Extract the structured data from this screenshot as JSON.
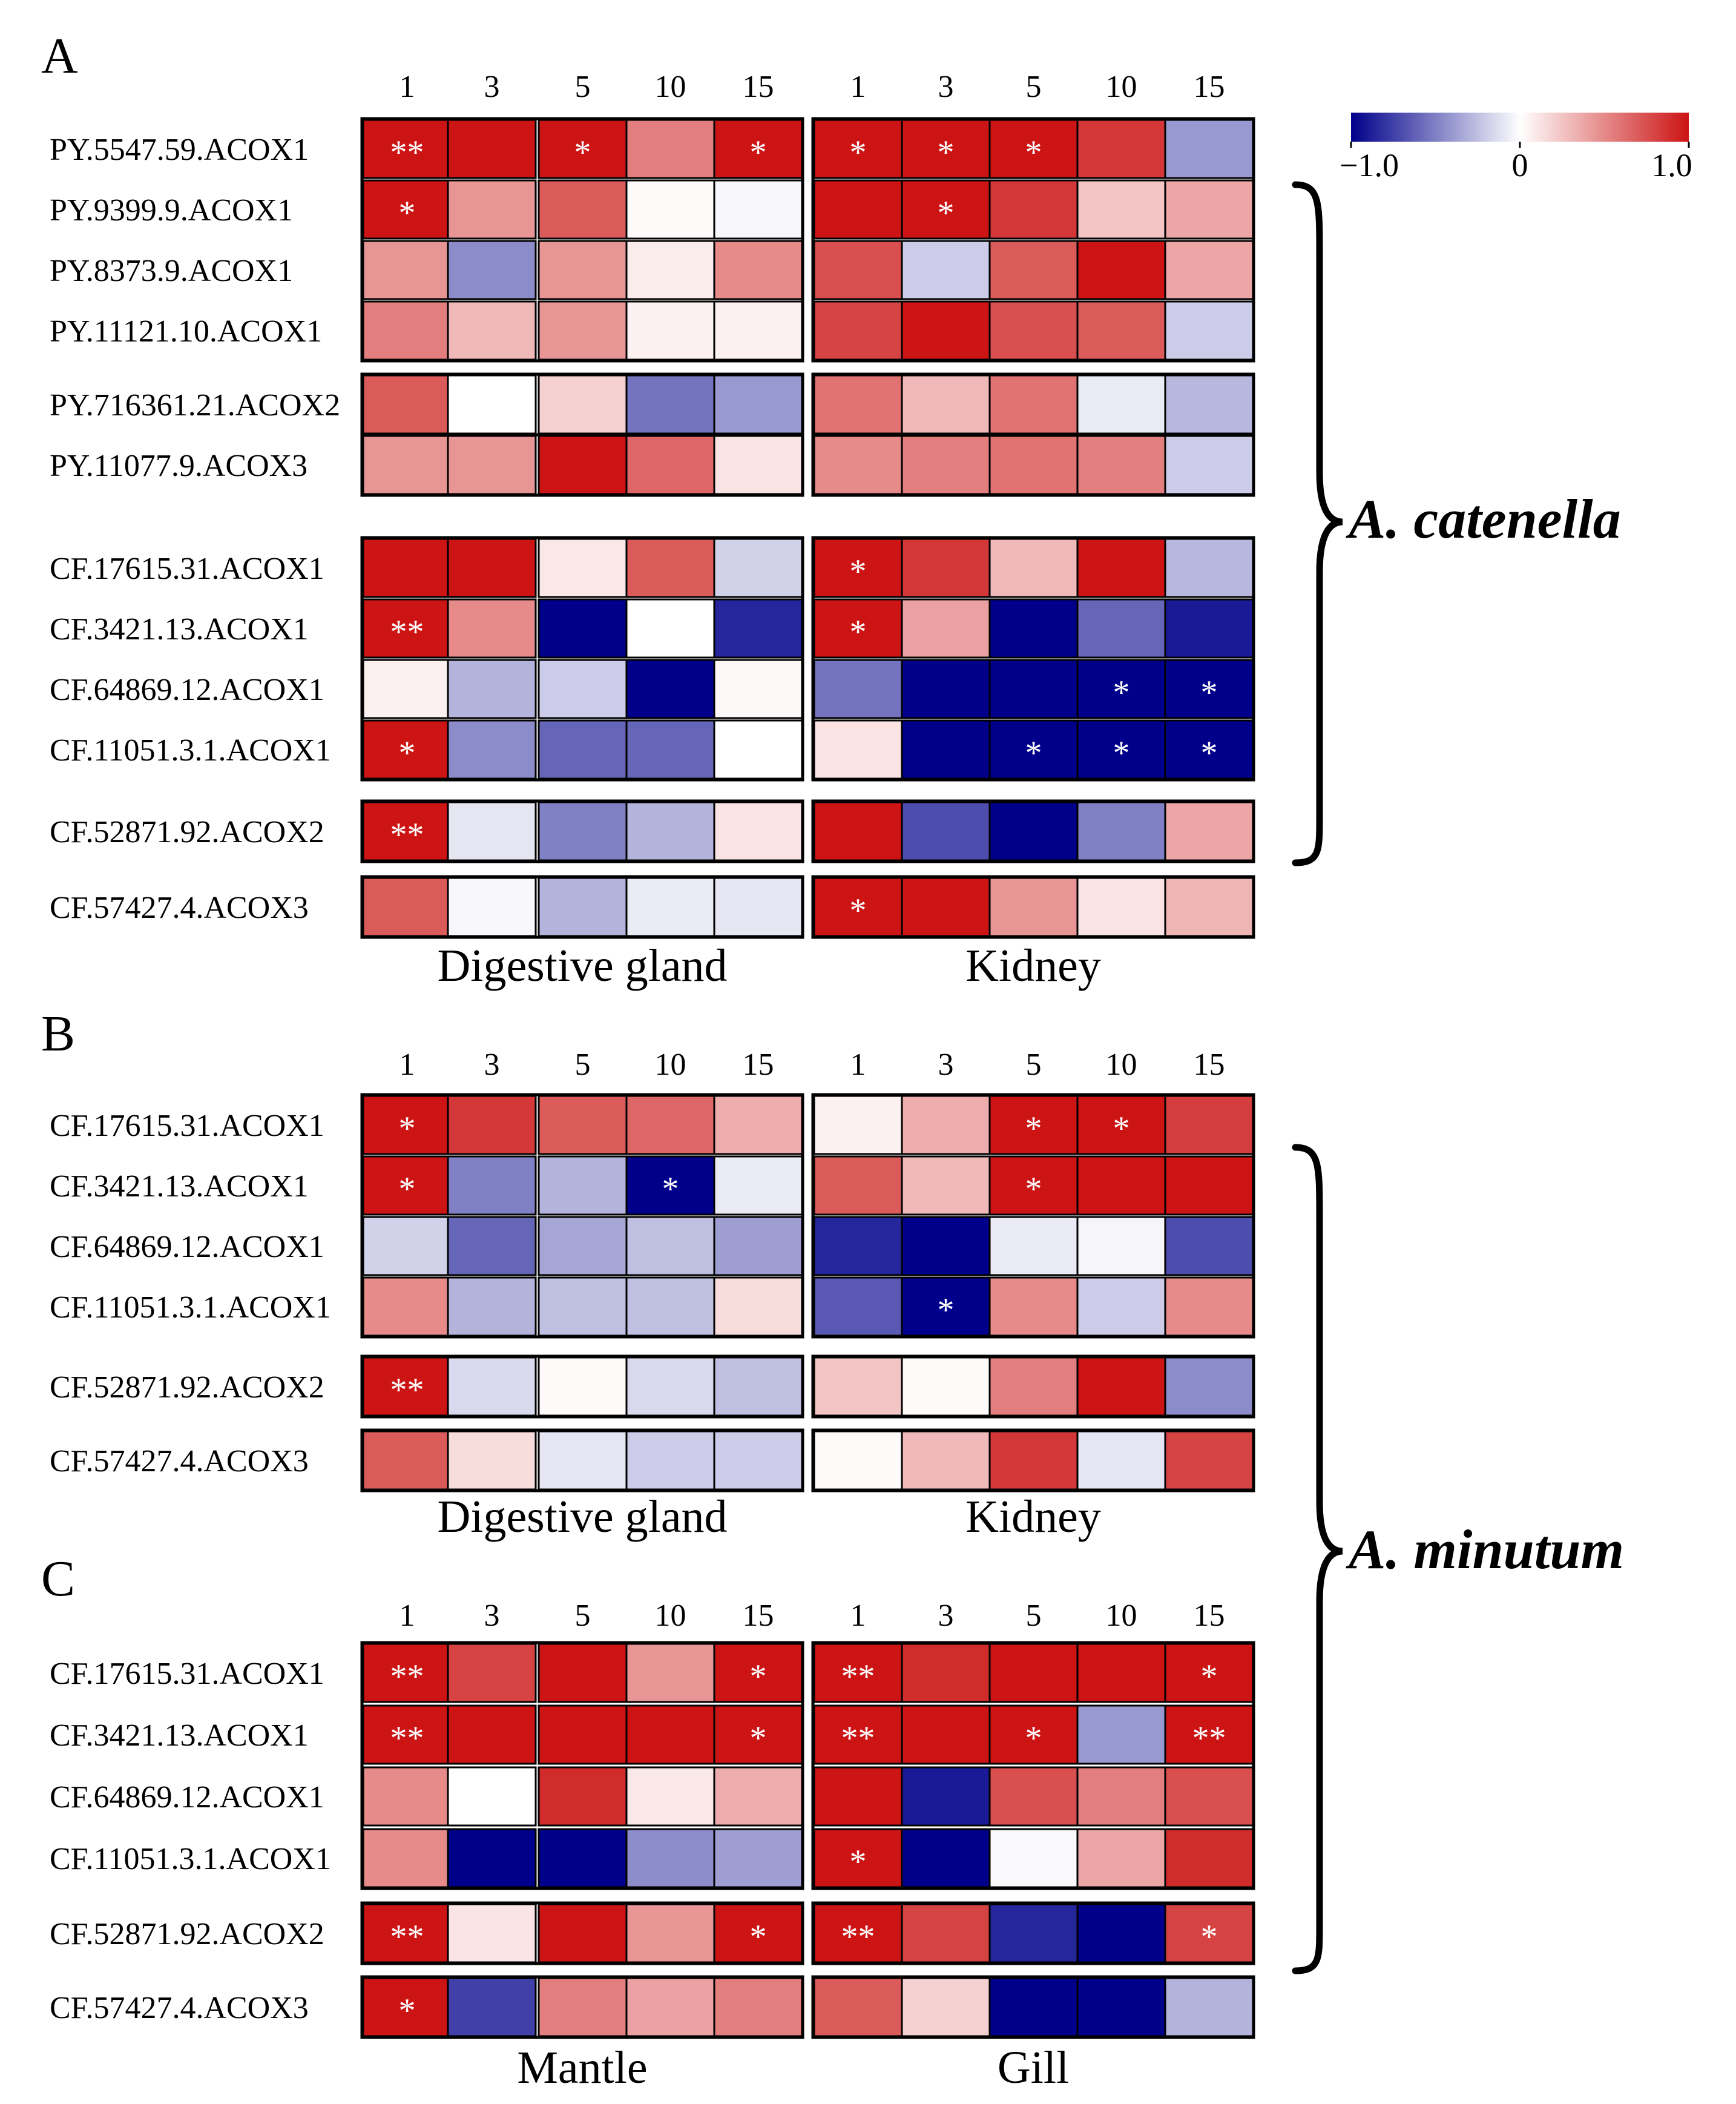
{
  "figure": {
    "colorbar": {
      "min_label": "−1.0",
      "mid_label": "0",
      "max_label": "1.0",
      "low_color": "#00008B",
      "mid_color": "#FFFFFF",
      "high_color": "#CC1414"
    },
    "brace_labels": {
      "catenella": "A. catenella",
      "minutum": "A. minutum"
    }
  },
  "chart_data": [
    {
      "type": "heatmap",
      "panel": "A",
      "species": "A. catenella",
      "timepoints": [
        "1",
        "3",
        "5",
        "10",
        "15"
      ],
      "tissues": [
        "Digestive gland",
        "Kidney"
      ],
      "value_range": [
        -1.0,
        1.0
      ],
      "groups": [
        [
          0,
          1,
          2,
          3
        ],
        [
          4
        ],
        [
          5
        ],
        [
          6,
          7,
          8,
          9
        ],
        [
          10
        ],
        [
          11
        ]
      ],
      "rows": [
        {
          "gene": "PY.5547.59.ACOX1",
          "values": [
            [
              1.0,
              1.0,
              1.0,
              0.55,
              1.0
            ],
            [
              1.0,
              1.0,
              1.0,
              0.85,
              -0.4
            ]
          ],
          "sig": [
            [
              "**",
              "",
              "*",
              "",
              "*"
            ],
            [
              "*",
              "*",
              "*",
              "",
              ""
            ]
          ]
        },
        {
          "gene": "PY.9399.9.ACOX1",
          "values": [
            [
              1.0,
              0.45,
              0.7,
              0.02,
              -0.03
            ],
            [
              1.0,
              1.0,
              0.85,
              0.25,
              0.38
            ]
          ],
          "sig": [
            [
              "*",
              "",
              "",
              "",
              ""
            ],
            [
              "",
              "*",
              "",
              "",
              ""
            ]
          ]
        },
        {
          "gene": "PY.8373.9.ACOX1",
          "values": [
            [
              0.45,
              -0.45,
              0.45,
              0.08,
              0.5
            ],
            [
              0.75,
              -0.2,
              0.7,
              1.0,
              0.38
            ]
          ],
          "sig": [
            [
              "",
              "",
              "",
              "",
              ""
            ],
            [
              "",
              "",
              "",
              "",
              ""
            ]
          ]
        },
        {
          "gene": "PY.11121.10.ACOX1",
          "values": [
            [
              0.55,
              0.3,
              0.45,
              0.06,
              0.06
            ],
            [
              0.8,
              1.0,
              0.75,
              0.7,
              -0.2
            ]
          ],
          "sig": [
            [
              "",
              "",
              "",
              "",
              ""
            ],
            [
              "",
              "",
              "",
              "",
              ""
            ]
          ]
        },
        {
          "gene": "PY.716361.21.ACOX2",
          "values": [
            [
              0.7,
              0.0,
              0.2,
              -0.55,
              -0.4
            ],
            [
              0.6,
              0.3,
              0.6,
              -0.08,
              -0.28
            ]
          ],
          "sig": [
            [
              "",
              "",
              "",
              "",
              ""
            ],
            [
              "",
              "",
              "",
              "",
              ""
            ]
          ]
        },
        {
          "gene": "PY.11077.9.ACOX3",
          "values": [
            [
              0.45,
              0.45,
              1.0,
              0.65,
              0.12
            ],
            [
              0.5,
              0.55,
              0.6,
              0.55,
              -0.2
            ]
          ],
          "sig": [
            [
              "",
              "",
              "",
              "",
              ""
            ],
            [
              "",
              "",
              "",
              "",
              ""
            ]
          ]
        },
        {
          "gene": "CF.17615.31.ACOX1",
          "values": [
            [
              1.0,
              1.0,
              0.1,
              0.7,
              -0.18
            ],
            [
              1.0,
              0.85,
              0.3,
              1.0,
              -0.28
            ]
          ],
          "sig": [
            [
              "",
              "",
              "",
              "",
              ""
            ],
            [
              "*",
              "",
              "",
              "",
              ""
            ]
          ]
        },
        {
          "gene": "CF.3421.13.ACOX1",
          "values": [
            [
              1.0,
              0.5,
              -1.0,
              0.0,
              -0.85
            ],
            [
              1.0,
              0.4,
              -1.0,
              -0.6,
              -0.9
            ]
          ],
          "sig": [
            [
              "**",
              "",
              "",
              "",
              ""
            ],
            [
              "*",
              "",
              "",
              "",
              ""
            ]
          ]
        },
        {
          "gene": "CF.64869.12.ACOX1",
          "values": [
            [
              0.06,
              -0.3,
              -0.2,
              -1.0,
              0.03
            ],
            [
              -0.55,
              -1.0,
              -1.0,
              -1.0,
              -1.0
            ]
          ],
          "sig": [
            [
              "",
              "",
              "",
              "",
              ""
            ],
            [
              "",
              "",
              "",
              "*",
              "*"
            ]
          ]
        },
        {
          "gene": "CF.11051.3.1.ACOX1",
          "values": [
            [
              1.0,
              -0.45,
              -0.6,
              -0.6,
              0.0
            ],
            [
              0.12,
              -1.0,
              -1.0,
              -1.0,
              -1.0
            ]
          ],
          "sig": [
            [
              "*",
              "",
              "",
              "",
              ""
            ],
            [
              "",
              "",
              "*",
              "*",
              "*"
            ]
          ]
        },
        {
          "gene": "CF.52871.92.ACOX2",
          "values": [
            [
              1.0,
              -0.1,
              -0.5,
              -0.3,
              0.12
            ],
            [
              1.0,
              -0.7,
              -1.0,
              -0.5,
              0.38
            ]
          ],
          "sig": [
            [
              "**",
              "",
              "",
              "",
              ""
            ],
            [
              "",
              "",
              "",
              "",
              ""
            ]
          ]
        },
        {
          "gene": "CF.57427.4.ACOX3",
          "values": [
            [
              0.7,
              -0.03,
              -0.3,
              -0.08,
              -0.1
            ],
            [
              1.0,
              1.0,
              0.45,
              0.12,
              0.32
            ]
          ],
          "sig": [
            [
              "",
              "",
              "",
              "",
              ""
            ],
            [
              "*",
              "",
              "",
              "",
              ""
            ]
          ]
        }
      ]
    },
    {
      "type": "heatmap",
      "panel": "B",
      "species": "A. minutum",
      "timepoints": [
        "1",
        "3",
        "5",
        "10",
        "15"
      ],
      "tissues": [
        "Digestive gland",
        "Kidney"
      ],
      "value_range": [
        -1.0,
        1.0
      ],
      "groups": [
        [
          0,
          1,
          2,
          3
        ],
        [
          4
        ],
        [
          5
        ]
      ],
      "rows": [
        {
          "gene": "CF.17615.31.ACOX1",
          "values": [
            [
              1.0,
              0.85,
              0.7,
              0.65,
              0.35
            ],
            [
              0.06,
              0.35,
              1.0,
              1.0,
              0.82
            ]
          ],
          "sig": [
            [
              "*",
              "",
              "",
              "",
              ""
            ],
            [
              "",
              "",
              "*",
              "*",
              ""
            ]
          ]
        },
        {
          "gene": "CF.3421.13.ACOX1",
          "values": [
            [
              1.0,
              -0.5,
              -0.3,
              -1.0,
              -0.08
            ],
            [
              0.7,
              0.3,
              1.0,
              1.0,
              1.0
            ]
          ],
          "sig": [
            [
              "*",
              "",
              "",
              "*",
              ""
            ],
            [
              "",
              "",
              "*",
              "",
              ""
            ]
          ]
        },
        {
          "gene": "CF.64869.12.ACOX1",
          "values": [
            [
              -0.18,
              -0.6,
              -0.35,
              -0.25,
              -0.38
            ],
            [
              -0.85,
              -1.0,
              -0.08,
              -0.04,
              -0.7
            ]
          ],
          "sig": [
            [
              "",
              "",
              "",
              "",
              ""
            ],
            [
              "",
              "",
              "",
              "",
              ""
            ]
          ]
        },
        {
          "gene": "CF.11051.3.1.ACOX1",
          "values": [
            [
              0.5,
              -0.3,
              -0.25,
              -0.25,
              0.15
            ],
            [
              -0.65,
              -1.0,
              0.5,
              -0.2,
              0.5
            ]
          ],
          "sig": [
            [
              "",
              "",
              "",
              "",
              ""
            ],
            [
              "",
              "*",
              "",
              "",
              ""
            ]
          ]
        },
        {
          "gene": "CF.52871.92.ACOX2",
          "values": [
            [
              1.0,
              -0.15,
              0.02,
              -0.15,
              -0.25
            ],
            [
              0.25,
              0.02,
              0.55,
              1.0,
              -0.45
            ]
          ],
          "sig": [
            [
              "**",
              "",
              "",
              "",
              ""
            ],
            [
              "",
              "",
              "",
              "",
              ""
            ]
          ]
        },
        {
          "gene": "CF.57427.4.ACOX3",
          "values": [
            [
              0.7,
              0.15,
              -0.1,
              -0.2,
              -0.2
            ],
            [
              0.02,
              0.3,
              0.85,
              -0.1,
              0.8
            ]
          ],
          "sig": [
            [
              "",
              "",
              "",
              "",
              ""
            ],
            [
              "",
              "",
              "",
              "",
              ""
            ]
          ]
        }
      ]
    },
    {
      "type": "heatmap",
      "panel": "C",
      "species": "A. minutum",
      "timepoints": [
        "1",
        "3",
        "5",
        "10",
        "15"
      ],
      "tissues": [
        "Mantle",
        "Gill"
      ],
      "value_range": [
        -1.0,
        1.0
      ],
      "groups": [
        [
          0,
          1,
          2,
          3
        ],
        [
          4
        ],
        [
          5
        ]
      ],
      "rows": [
        {
          "gene": "CF.17615.31.ACOX1",
          "values": [
            [
              1.0,
              0.8,
              1.0,
              0.45,
              1.0
            ],
            [
              1.0,
              0.9,
              1.0,
              1.0,
              1.0
            ]
          ],
          "sig": [
            [
              "**",
              "",
              "",
              "",
              "*"
            ],
            [
              "**",
              "",
              "",
              "",
              "*"
            ]
          ]
        },
        {
          "gene": "CF.3421.13.ACOX1",
          "values": [
            [
              1.0,
              1.0,
              1.0,
              1.0,
              1.0
            ],
            [
              1.0,
              1.0,
              1.0,
              -0.4,
              1.0
            ]
          ],
          "sig": [
            [
              "**",
              "",
              "",
              "",
              "*"
            ],
            [
              "**",
              "",
              "*",
              "",
              "**"
            ]
          ]
        },
        {
          "gene": "CF.64869.12.ACOX1",
          "values": [
            [
              0.5,
              0.0,
              0.9,
              0.1,
              0.35
            ],
            [
              1.0,
              -0.9,
              0.75,
              0.55,
              0.75
            ]
          ],
          "sig": [
            [
              "",
              "",
              "",
              "",
              ""
            ],
            [
              "",
              "",
              "",
              "",
              ""
            ]
          ]
        },
        {
          "gene": "CF.11051.3.1.ACOX1",
          "values": [
            [
              0.5,
              -1.0,
              -1.0,
              -0.45,
              -0.38
            ],
            [
              1.0,
              -1.0,
              -0.02,
              0.38,
              0.9
            ]
          ],
          "sig": [
            [
              "",
              "",
              "",
              "",
              ""
            ],
            [
              "*",
              "",
              "",
              "",
              ""
            ]
          ]
        },
        {
          "gene": "CF.52871.92.ACOX2",
          "values": [
            [
              1.0,
              0.12,
              1.0,
              0.45,
              1.0
            ],
            [
              1.0,
              0.8,
              -0.85,
              -1.0,
              0.8
            ]
          ],
          "sig": [
            [
              "**",
              "",
              "",
              "",
              "*"
            ],
            [
              "**",
              "",
              "",
              "",
              "*"
            ]
          ]
        },
        {
          "gene": "CF.57427.4.ACOX3",
          "values": [
            [
              1.0,
              -0.75,
              0.55,
              0.4,
              0.55
            ],
            [
              0.7,
              0.2,
              -1.0,
              -1.0,
              -0.3
            ]
          ],
          "sig": [
            [
              "*",
              "",
              "",
              "",
              ""
            ],
            [
              "",
              "",
              "",
              "",
              ""
            ]
          ]
        }
      ]
    }
  ]
}
